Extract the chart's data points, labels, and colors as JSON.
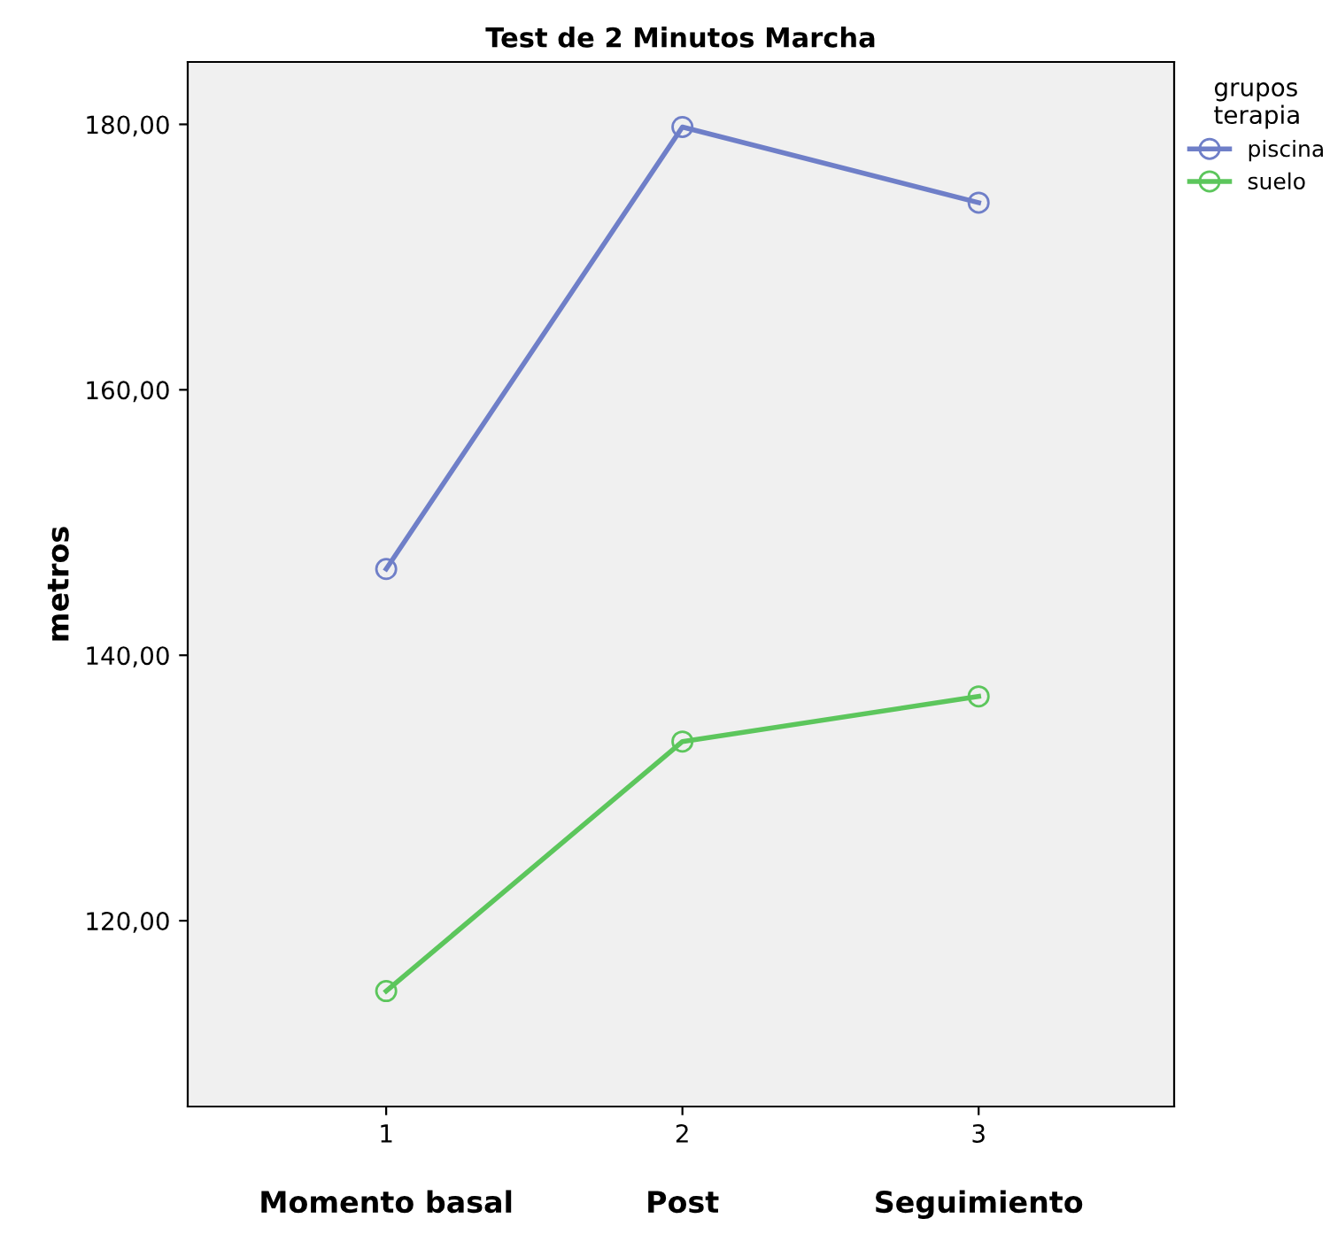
{
  "chart_data": {
    "type": "line",
    "title": "Test de 2 Minutos Marcha",
    "ylabel": "metros",
    "legend_title": "grupos\nterapia",
    "x": [
      1,
      2,
      3
    ],
    "series": [
      {
        "name": "piscina",
        "color": "#6f7fc8",
        "values": [
          146.5,
          179.8,
          174.1
        ]
      },
      {
        "name": "suelo",
        "color": "#5cc65c",
        "values": [
          114.7,
          133.5,
          136.9
        ]
      }
    ],
    "xlim": [
      0.33,
      3.66
    ],
    "ylim": [
      106,
      184.7
    ],
    "xticks": [
      1,
      2,
      3
    ],
    "yticks": [
      {
        "value": 120,
        "label": "120,00"
      },
      {
        "value": 140,
        "label": "140,00"
      },
      {
        "value": 160,
        "label": "160,00"
      },
      {
        "value": 180,
        "label": "180,00"
      }
    ],
    "annotations": [
      "Momento basal",
      "Post",
      "Seguimiento"
    ],
    "marker": "circle",
    "line_style": "solid",
    "legend": "top right",
    "grid": false
  }
}
